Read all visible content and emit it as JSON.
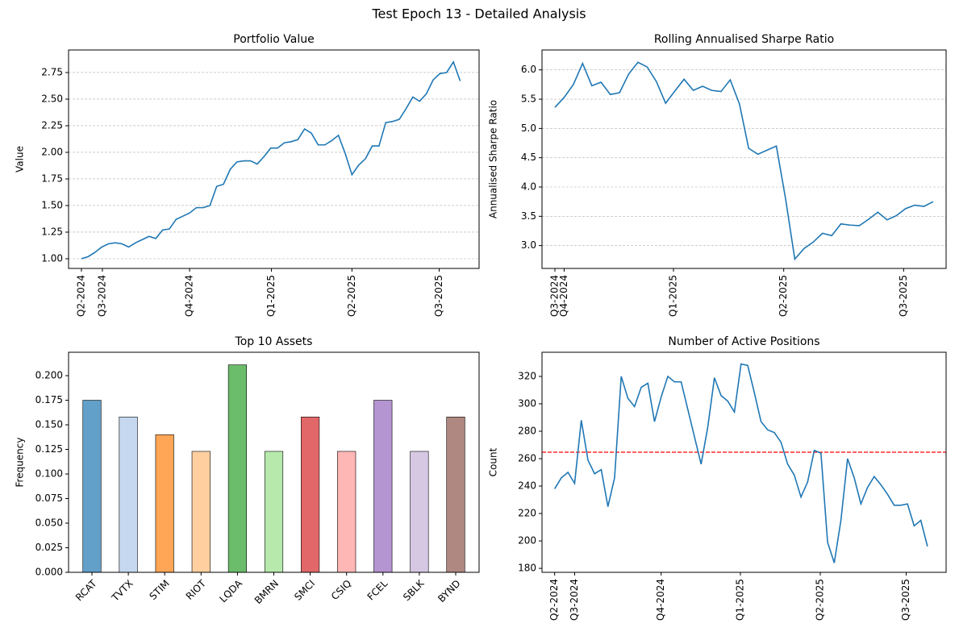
{
  "title": "Test Epoch 13 - Detailed Analysis",
  "chart_data": [
    {
      "type": "line",
      "title": "Portfolio Value",
      "y_label": "Value",
      "color": "#1f77b4",
      "grid": true,
      "x": [
        0,
        1,
        2,
        3,
        4,
        5,
        6,
        7,
        8,
        9,
        10,
        11,
        12,
        13,
        14,
        15,
        16,
        17,
        18,
        19,
        20,
        21,
        22,
        23,
        24,
        25,
        26,
        27,
        28,
        29,
        30,
        31,
        32,
        33,
        34,
        35,
        36,
        37,
        38,
        39,
        40,
        41,
        42,
        43,
        44,
        45,
        46,
        47,
        48,
        49,
        50,
        51,
        52,
        53,
        54,
        55,
        56
      ],
      "values": [
        1.0,
        1.02,
        1.06,
        1.11,
        1.14,
        1.15,
        1.14,
        1.11,
        1.15,
        1.18,
        1.21,
        1.19,
        1.27,
        1.28,
        1.37,
        1.4,
        1.43,
        1.48,
        1.48,
        1.5,
        1.68,
        1.7,
        1.84,
        1.91,
        1.92,
        1.92,
        1.89,
        1.96,
        2.04,
        2.04,
        2.09,
        2.1,
        2.12,
        2.22,
        2.18,
        2.07,
        2.07,
        2.11,
        2.16,
        1.99,
        1.79,
        1.88,
        1.94,
        2.06,
        2.06,
        2.28,
        2.29,
        2.31,
        2.41,
        2.52,
        2.48,
        2.55,
        2.68,
        2.74,
        2.75,
        2.85,
        2.67
      ],
      "xlim": [
        -1.9,
        58.8
      ],
      "xticks": [
        {
          "value": 0,
          "label": "Q2-2024"
        },
        {
          "value": 3.1,
          "label": "Q3-2024"
        },
        {
          "value": 16,
          "label": "Q4-2024"
        },
        {
          "value": 28.1,
          "label": "Q1-2025"
        },
        {
          "value": 40,
          "label": "Q2-2025"
        },
        {
          "value": 52.9,
          "label": "Q3-2025"
        }
      ],
      "ylim": [
        0.909,
        2.962
      ],
      "yticks": [
        {
          "value": 1,
          "label": "1.00"
        },
        1.25,
        {
          "value": 1.5,
          "label": "1.50"
        },
        1.75,
        {
          "value": 2,
          "label": "2.00"
        },
        2.25,
        {
          "value": 2.5,
          "label": "2.50"
        },
        2.75
      ]
    },
    {
      "type": "line",
      "title": "Rolling Annualised Sharpe Ratio",
      "y_label": "Annualised Sharpe Ratio",
      "color": "#1f77b4",
      "grid": true,
      "x": [
        0,
        1,
        2,
        3,
        4,
        5,
        6,
        7,
        8,
        9,
        10,
        11,
        12,
        13,
        14,
        15,
        16,
        17,
        18,
        19,
        20,
        21,
        22,
        23,
        24,
        25,
        26,
        27,
        28,
        29,
        30,
        31,
        32,
        33,
        34,
        35,
        36,
        37,
        38,
        39,
        40,
        41
      ],
      "values": [
        5.36,
        5.53,
        5.75,
        6.11,
        5.73,
        5.79,
        5.58,
        5.61,
        5.93,
        6.13,
        6.05,
        5.8,
        5.43,
        5.64,
        5.84,
        5.65,
        5.72,
        5.65,
        5.63,
        5.83,
        5.42,
        4.66,
        4.56,
        4.63,
        4.7,
        3.8,
        2.77,
        2.95,
        3.06,
        3.21,
        3.17,
        3.37,
        3.35,
        3.34,
        3.45,
        3.57,
        3.44,
        3.51,
        3.63,
        3.69,
        3.67,
        3.75
      ],
      "xlim": [
        -1.4,
        42.4
      ],
      "xticks": [
        {
          "value": 0,
          "label": "Q3-2024"
        },
        {
          "value": 1,
          "label": "Q4-2024"
        },
        {
          "value": 12.85,
          "label": "Q1-2025"
        },
        {
          "value": 24.8,
          "label": "Q2-2025"
        },
        {
          "value": 37.8,
          "label": "Q3-2025"
        }
      ],
      "ylim": [
        2.61,
        6.34
      ],
      "yticks": [
        {
          "value": 3,
          "label": "3.0"
        },
        3.5,
        {
          "value": 4,
          "label": "4.0"
        },
        4.5,
        {
          "value": 5,
          "label": "5.0"
        },
        5.5,
        {
          "value": 6,
          "label": "6.0"
        }
      ]
    },
    {
      "type": "bar",
      "title": "Top 10 Assets",
      "y_label": "Frequency",
      "grid": false,
      "categories": [
        "RCAT",
        "TVTX",
        "STIM",
        "RIOT",
        "LQDA",
        "BMRN",
        "SMCI",
        "CSIQ",
        "FCEL",
        "SBLK",
        "BYND"
      ],
      "values": [
        0.175,
        0.158,
        0.14,
        0.123,
        0.211,
        0.123,
        0.158,
        0.123,
        0.175,
        0.123,
        0.158
      ],
      "colors": [
        "#1f77b4",
        "#aec7e8",
        "#ff7f0e",
        "#ffbb78",
        "#2ca02c",
        "#98df8a",
        "#d62728",
        "#ff9896",
        "#9467bd",
        "#c5b0d5",
        "#8c564b"
      ],
      "ylim": [
        0,
        0.2238
      ],
      "yticks": [
        {
          "value": 0,
          "label": "0.000"
        },
        0.025,
        {
          "value": 0.05,
          "label": "0.050"
        },
        0.075,
        {
          "value": 0.1,
          "label": "0.100"
        },
        0.125,
        {
          "value": 0.15,
          "label": "0.150"
        },
        0.175,
        {
          "value": 0.2,
          "label": "0.200"
        }
      ]
    },
    {
      "type": "line",
      "title": "Number of Active Positions",
      "y_label": "Count",
      "color": "#1f77b4",
      "grid": false,
      "x": [
        0,
        1,
        2,
        3,
        4,
        5,
        6,
        7,
        8,
        9,
        10,
        11,
        12,
        13,
        14,
        15,
        16,
        17,
        18,
        19,
        20,
        21,
        22,
        23,
        24,
        25,
        26,
        27,
        28,
        29,
        30,
        31,
        32,
        33,
        34,
        35,
        36,
        37,
        38,
        39,
        40,
        41,
        42,
        43,
        44,
        45,
        46,
        47,
        48,
        49,
        50,
        51,
        52,
        53,
        54,
        55,
        56
      ],
      "values": [
        238,
        246,
        250,
        242,
        288,
        259,
        249,
        252,
        225,
        246,
        320,
        304,
        298,
        312,
        315,
        287,
        305,
        320,
        316,
        316,
        296,
        276,
        256,
        283,
        319,
        306,
        302,
        294,
        329,
        328,
        308,
        287,
        281,
        279,
        272,
        256,
        248,
        232,
        243,
        266,
        264,
        199,
        184,
        215,
        260,
        246,
        227,
        239,
        247,
        241,
        234,
        226,
        226,
        227,
        211,
        215,
        196
      ],
      "hline": 264.7,
      "hline_color": "red",
      "xlim": [
        -1.9,
        58.8
      ],
      "xticks": [
        {
          "value": 0,
          "label": "Q2-2024"
        },
        {
          "value": 3,
          "label": "Q3-2024"
        },
        {
          "value": 16,
          "label": "Q4-2024"
        },
        {
          "value": 27.9,
          "label": "Q1-2025"
        },
        {
          "value": 39.9,
          "label": "Q2-2025"
        },
        {
          "value": 52.8,
          "label": "Q3-2025"
        }
      ],
      "ylim": [
        177.1,
        337.6
      ],
      "yticks": [
        180,
        200,
        220,
        240,
        260,
        280,
        300,
        320
      ]
    }
  ]
}
